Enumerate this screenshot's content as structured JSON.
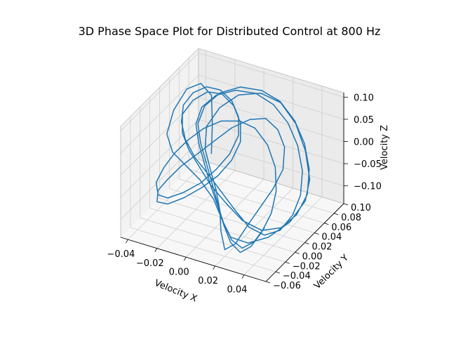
{
  "chart_data": {
    "type": "line3d",
    "title": "3D Phase Space Plot for Distributed Control at 800 Hz",
    "xlabel": "Velocity X",
    "ylabel": "Velocity Y",
    "zlabel": "Velocity Z",
    "xlim": [
      -0.045,
      0.055
    ],
    "ylim": [
      -0.06,
      0.1
    ],
    "zlim": [
      -0.14,
      0.11
    ],
    "x_ticks": [
      "−0.04",
      "−0.02",
      "0.00",
      "0.02",
      "0.04"
    ],
    "x_tick_values": [
      -0.04,
      -0.02,
      0.0,
      0.02,
      0.04
    ],
    "y_ticks": [
      "−0.06",
      "−0.04",
      "−0.02",
      "0.00",
      "0.02",
      "0.04",
      "0.06",
      "0.08",
      "0.10"
    ],
    "y_tick_values": [
      -0.06,
      -0.04,
      -0.02,
      0.0,
      0.02,
      0.04,
      0.06,
      0.08,
      0.1
    ],
    "z_ticks": [
      "−0.10",
      "−0.05",
      "0.00",
      "0.05",
      "0.10"
    ],
    "z_tick_values": [
      -0.1,
      -0.05,
      0.0,
      0.05,
      0.1
    ],
    "grid": true,
    "line_color": "#1f77b4",
    "series": [
      {
        "points": [
          [
            -0.006,
            0.01,
            0.01
          ],
          [
            -0.012,
            0.03,
            0.05
          ],
          [
            -0.02,
            0.052,
            0.082
          ],
          [
            -0.03,
            0.06,
            0.09
          ],
          [
            -0.038,
            0.055,
            0.075
          ],
          [
            -0.042,
            0.04,
            0.04
          ],
          [
            -0.04,
            0.02,
            0.01
          ],
          [
            -0.032,
            0.008,
            -0.01
          ],
          [
            -0.02,
            0.0,
            -0.02
          ],
          [
            -0.008,
            -0.008,
            -0.03
          ],
          [
            0.004,
            -0.015,
            -0.055
          ],
          [
            0.012,
            -0.022,
            -0.085
          ],
          [
            0.02,
            -0.028,
            -0.11
          ],
          [
            0.03,
            -0.022,
            -0.12
          ],
          [
            0.04,
            -0.01,
            -0.11
          ],
          [
            0.048,
            0.01,
            -0.09
          ],
          [
            0.052,
            0.03,
            -0.06
          ],
          [
            0.05,
            0.045,
            -0.03
          ],
          [
            0.042,
            0.06,
            0.01
          ],
          [
            0.032,
            0.07,
            0.05
          ],
          [
            0.02,
            0.075,
            0.08
          ],
          [
            0.008,
            0.07,
            0.095
          ],
          [
            -0.004,
            0.06,
            0.09
          ],
          [
            -0.012,
            0.045,
            0.07
          ],
          [
            -0.016,
            0.03,
            0.04
          ],
          [
            -0.012,
            0.015,
            0.01
          ],
          [
            -0.004,
            0.002,
            -0.015
          ],
          [
            0.004,
            -0.01,
            -0.04
          ],
          [
            0.01,
            -0.02,
            -0.07
          ],
          [
            0.014,
            -0.03,
            -0.1
          ],
          [
            0.02,
            -0.04,
            -0.125
          ],
          [
            0.026,
            -0.036,
            -0.11
          ],
          [
            0.03,
            -0.025,
            -0.08
          ],
          [
            0.034,
            -0.01,
            -0.05
          ],
          [
            0.038,
            0.005,
            -0.02
          ],
          [
            0.04,
            0.02,
            0.01
          ],
          [
            0.036,
            0.035,
            0.04
          ],
          [
            0.028,
            0.045,
            0.06
          ],
          [
            0.018,
            0.05,
            0.07
          ],
          [
            0.008,
            0.048,
            0.06
          ],
          [
            -0.002,
            0.04,
            0.04
          ],
          [
            -0.01,
            0.03,
            0.015
          ],
          [
            -0.018,
            0.018,
            -0.01
          ],
          [
            -0.026,
            0.008,
            -0.035
          ],
          [
            -0.032,
            -0.002,
            -0.06
          ],
          [
            -0.036,
            -0.01,
            -0.08
          ],
          [
            -0.034,
            -0.018,
            -0.095
          ],
          [
            -0.026,
            -0.02,
            -0.09
          ],
          [
            -0.016,
            -0.016,
            -0.07
          ],
          [
            -0.006,
            -0.008,
            -0.045
          ],
          [
            0.002,
            0.0,
            -0.02
          ],
          [
            0.008,
            0.01,
            0.01
          ],
          [
            0.01,
            0.022,
            0.04
          ],
          [
            0.006,
            0.034,
            0.065
          ],
          [
            -0.002,
            0.044,
            0.085
          ],
          [
            -0.012,
            0.05,
            0.095
          ],
          [
            -0.022,
            0.05,
            0.09
          ],
          [
            -0.03,
            0.044,
            0.07
          ],
          [
            -0.034,
            0.034,
            0.045
          ],
          [
            -0.03,
            0.022,
            0.02
          ],
          [
            -0.022,
            0.012,
            0.0
          ],
          [
            -0.012,
            0.004,
            -0.02
          ],
          [
            -0.002,
            -0.004,
            -0.04
          ],
          [
            0.01,
            -0.008,
            -0.065
          ],
          [
            0.022,
            -0.01,
            -0.09
          ],
          [
            0.034,
            -0.006,
            -0.105
          ],
          [
            0.044,
            0.004,
            -0.1
          ],
          [
            0.05,
            0.018,
            -0.08
          ],
          [
            0.052,
            0.034,
            -0.05
          ],
          [
            0.048,
            0.05,
            -0.015
          ],
          [
            0.04,
            0.064,
            0.02
          ],
          [
            0.03,
            0.074,
            0.05
          ],
          [
            0.018,
            0.08,
            0.075
          ],
          [
            0.006,
            0.078,
            0.09
          ],
          [
            -0.006,
            0.07,
            0.095
          ],
          [
            -0.016,
            0.058,
            0.085
          ],
          [
            -0.022,
            0.044,
            0.065
          ],
          [
            -0.022,
            0.03,
            0.04
          ],
          [
            -0.016,
            0.018,
            0.015
          ],
          [
            -0.008,
            0.006,
            -0.01
          ],
          [
            0.0,
            -0.006,
            -0.035
          ],
          [
            0.008,
            -0.018,
            -0.06
          ],
          [
            0.016,
            -0.03,
            -0.085
          ],
          [
            0.024,
            -0.04,
            -0.105
          ],
          [
            0.032,
            -0.044,
            -0.115
          ],
          [
            0.038,
            -0.04,
            -0.1
          ],
          [
            0.042,
            -0.03,
            -0.075
          ],
          [
            0.044,
            -0.016,
            -0.045
          ],
          [
            0.042,
            0.0,
            -0.015
          ],
          [
            0.036,
            0.016,
            0.015
          ],
          [
            0.026,
            0.03,
            0.04
          ],
          [
            0.014,
            0.04,
            0.055
          ],
          [
            0.002,
            0.044,
            0.055
          ],
          [
            -0.01,
            0.042,
            0.045
          ],
          [
            -0.02,
            0.036,
            0.025
          ],
          [
            -0.028,
            0.028,
            0.0
          ],
          [
            -0.034,
            0.018,
            -0.025
          ],
          [
            -0.038,
            0.008,
            -0.05
          ],
          [
            -0.04,
            -0.002,
            -0.075
          ],
          [
            -0.036,
            -0.01,
            -0.09
          ],
          [
            -0.028,
            -0.014,
            -0.085
          ],
          [
            -0.018,
            -0.012,
            -0.065
          ],
          [
            -0.008,
            -0.006,
            -0.04
          ],
          [
            0.0,
            0.002,
            -0.01
          ],
          [
            0.006,
            0.012,
            0.02
          ],
          [
            0.008,
            0.024,
            0.05
          ],
          [
            0.004,
            0.036,
            0.075
          ],
          [
            -0.004,
            0.046,
            0.092
          ],
          [
            -0.014,
            0.052,
            0.1
          ],
          [
            -0.024,
            0.054,
            0.095
          ],
          [
            -0.032,
            0.05,
            0.078
          ],
          [
            -0.036,
            0.042,
            0.055
          ],
          [
            -0.034,
            0.032,
            0.03
          ],
          [
            -0.028,
            0.022,
            0.008
          ],
          [
            -0.018,
            0.012,
            -0.012
          ],
          [
            -0.006,
            0.004,
            -0.03
          ],
          [
            0.006,
            -0.004,
            -0.05
          ],
          [
            0.018,
            -0.01,
            -0.075
          ],
          [
            0.028,
            -0.014,
            -0.095
          ],
          [
            0.038,
            -0.012,
            -0.105
          ],
          [
            0.046,
            -0.004,
            -0.095
          ],
          [
            0.05,
            0.01,
            -0.072
          ],
          [
            0.05,
            0.026,
            -0.045
          ],
          [
            0.046,
            0.042,
            -0.012
          ],
          [
            0.038,
            0.056,
            0.022
          ],
          [
            0.028,
            0.066,
            0.052
          ],
          [
            0.016,
            0.072,
            0.075
          ],
          [
            0.004,
            0.072,
            0.088
          ],
          [
            -0.008,
            0.066,
            0.09
          ],
          [
            -0.018,
            0.056,
            0.08
          ],
          [
            -0.024,
            0.044,
            0.06
          ],
          [
            -0.024,
            0.032,
            0.035
          ],
          [
            -0.018,
            0.02,
            0.01
          ],
          [
            -0.01,
            0.008,
            -0.015
          ],
          [
            -0.002,
            -0.004,
            -0.04
          ],
          [
            0.006,
            -0.014,
            -0.065
          ],
          [
            0.014,
            -0.024,
            -0.09
          ],
          [
            0.022,
            -0.032,
            -0.11
          ],
          [
            0.03,
            -0.034,
            -0.118
          ],
          [
            0.036,
            -0.028,
            -0.105
          ],
          [
            0.04,
            -0.018,
            -0.08
          ]
        ]
      }
    ]
  }
}
